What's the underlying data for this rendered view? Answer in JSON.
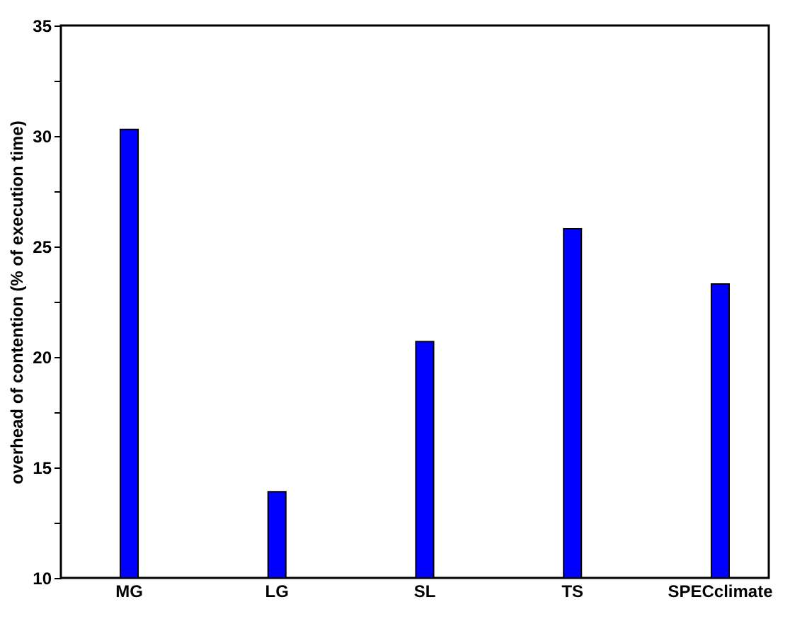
{
  "chart_data": {
    "type": "bar",
    "ylabel": "overhead of contention (% of execution time)",
    "categories": [
      "MG",
      "LG",
      "SL",
      "TS",
      "SPECclimate"
    ],
    "values": [
      30.3,
      13.9,
      20.7,
      25.8,
      23.3
    ],
    "color": "#0000ff",
    "ylim": [
      10,
      35
    ],
    "yticks": [
      10,
      {
        "value": 12.5,
        "label": null
      },
      15,
      {
        "value": 17.5,
        "label": null
      },
      20,
      {
        "value": 22.5,
        "label": null
      },
      25,
      {
        "value": 27.5,
        "label": null
      },
      30,
      {
        "value": 32.5,
        "label": null
      },
      35
    ],
    "grid": false
  }
}
